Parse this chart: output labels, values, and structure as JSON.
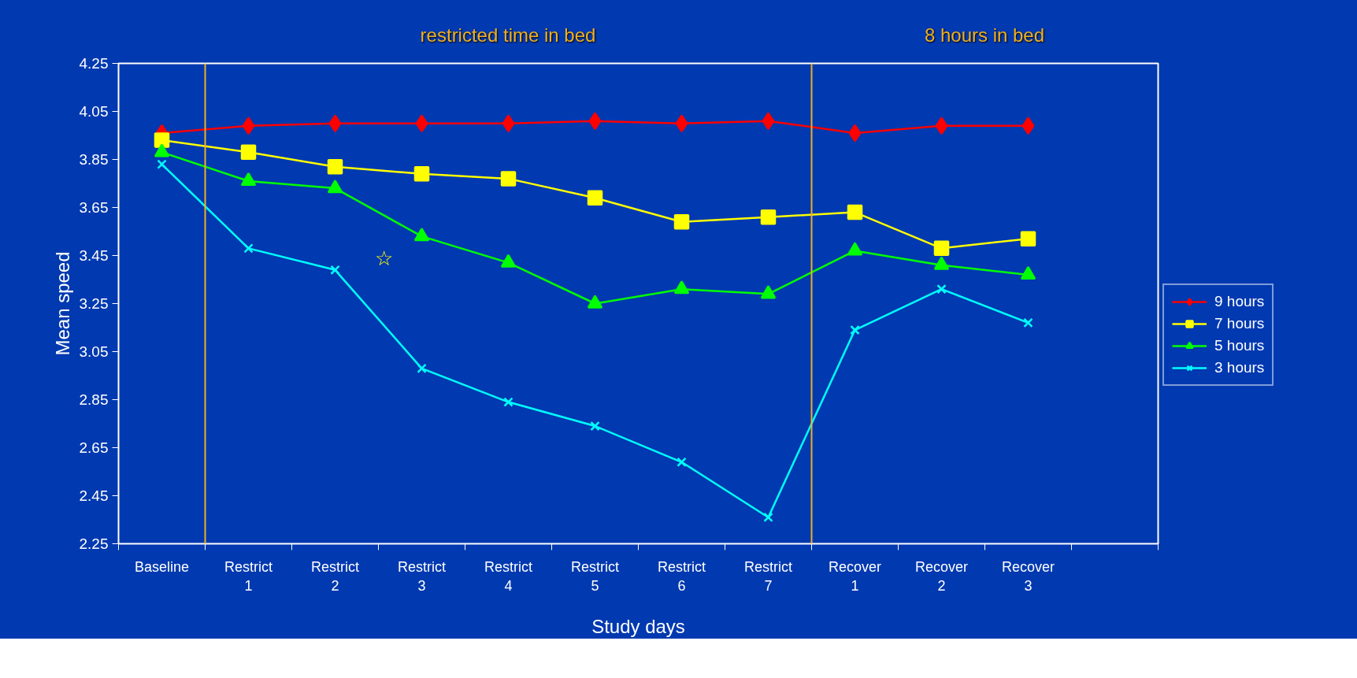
{
  "chart_data": {
    "type": "line",
    "xlabel": "Study days",
    "ylabel": "Mean speed",
    "categories": [
      "Baseline",
      "Restrict 1",
      "Restrict 2",
      "Restrict 3",
      "Restrict 4",
      "Restrict 5",
      "Restrict 6",
      "Restrict 7",
      "Recover 1",
      "Recover 2",
      "Recover 3",
      null
    ],
    "series": [
      {
        "name": "9 hours",
        "color": "#ff0000",
        "marker": "diamond",
        "values": [
          3.96,
          3.99,
          4.0,
          4.0,
          4.0,
          4.01,
          4.0,
          4.01,
          3.96,
          3.99,
          3.99,
          null
        ]
      },
      {
        "name": "7 hours",
        "color": "#ffff00",
        "marker": "square",
        "values": [
          3.93,
          3.88,
          3.82,
          3.79,
          3.77,
          3.69,
          3.59,
          3.61,
          3.63,
          3.48,
          3.52,
          null
        ]
      },
      {
        "name": "5 hours",
        "color": "#00ff00",
        "marker": "triangle",
        "values": [
          3.88,
          3.76,
          3.73,
          3.53,
          3.42,
          3.25,
          3.31,
          3.29,
          3.47,
          3.41,
          3.37,
          null
        ]
      },
      {
        "name": "3 hours",
        "color": "#00ffff",
        "marker": "cross",
        "values": [
          3.83,
          3.48,
          3.39,
          2.98,
          2.84,
          2.74,
          2.59,
          2.36,
          3.14,
          3.31,
          3.17,
          null
        ]
      }
    ],
    "ylim": [
      2.25,
      4.25
    ],
    "yticks": [
      2.25,
      2.45,
      2.65,
      2.85,
      3.05,
      3.25,
      3.45,
      3.65,
      3.85,
      4.05,
      4.25
    ],
    "annotations": [
      "restricted time in bed",
      "8 hours in bed",
      "☆"
    ],
    "grid": false,
    "legend": "right",
    "line_style": "solid"
  }
}
